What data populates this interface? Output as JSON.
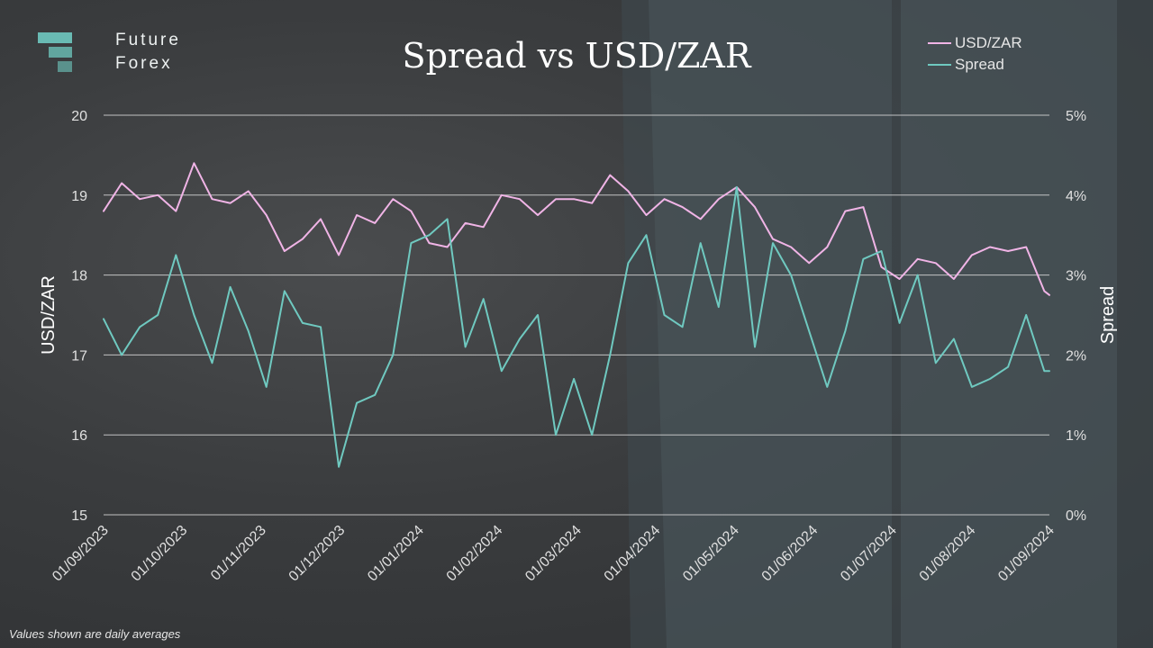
{
  "brand": {
    "line1": "Future",
    "line2": "Forex"
  },
  "footnote": "Values shown are daily averages",
  "colors": {
    "usdzar": "#f0b4e6",
    "spread": "#6fc9c0",
    "grid": "#d9d9d9"
  },
  "chart_data": {
    "type": "line",
    "title": "Spread vs USD/ZAR",
    "legend_position": "top-right",
    "grid": true,
    "y_left": {
      "label": "USD/ZAR",
      "range": [
        15,
        20
      ],
      "ticks": [
        "15",
        "16",
        "17",
        "18",
        "19",
        "20"
      ]
    },
    "y_right": {
      "label": "Spread",
      "range": [
        0,
        5
      ],
      "ticks": [
        "0%",
        "1%",
        "2%",
        "3%",
        "4%",
        "5%"
      ]
    },
    "x_tick_labels": [
      "01/09/2023",
      "01/10/2023",
      "01/11/2023",
      "01/12/2023",
      "01/01/2024",
      "01/02/2024",
      "01/03/2024",
      "01/04/2024",
      "01/05/2024",
      "01/06/2024",
      "01/07/2024",
      "01/08/2024",
      "01/09/2024"
    ],
    "x": [
      "2023-09-01",
      "2023-09-08",
      "2023-09-15",
      "2023-09-22",
      "2023-09-29",
      "2023-10-06",
      "2023-10-13",
      "2023-10-20",
      "2023-10-27",
      "2023-11-03",
      "2023-11-10",
      "2023-11-17",
      "2023-11-24",
      "2023-12-01",
      "2023-12-08",
      "2023-12-15",
      "2023-12-22",
      "2023-12-29",
      "2024-01-05",
      "2024-01-12",
      "2024-01-19",
      "2024-01-26",
      "2024-02-02",
      "2024-02-09",
      "2024-02-16",
      "2024-02-23",
      "2024-03-01",
      "2024-03-08",
      "2024-03-15",
      "2024-03-22",
      "2024-03-29",
      "2024-04-05",
      "2024-04-12",
      "2024-04-19",
      "2024-04-26",
      "2024-05-03",
      "2024-05-10",
      "2024-05-17",
      "2024-05-24",
      "2024-05-31",
      "2024-06-07",
      "2024-06-14",
      "2024-06-21",
      "2024-06-28",
      "2024-07-05",
      "2024-07-12",
      "2024-07-19",
      "2024-07-26",
      "2024-08-02",
      "2024-08-09",
      "2024-08-16",
      "2024-08-23",
      "2024-08-30",
      "2024-09-01"
    ],
    "series": [
      {
        "name": "USD/ZAR",
        "axis": "left",
        "values": [
          18.8,
          19.15,
          18.95,
          19.0,
          18.8,
          19.4,
          18.95,
          18.9,
          19.05,
          18.75,
          18.3,
          18.45,
          18.7,
          18.25,
          18.75,
          18.65,
          18.95,
          18.8,
          18.4,
          18.35,
          18.65,
          18.6,
          19.0,
          18.95,
          18.75,
          18.95,
          18.95,
          18.9,
          19.25,
          19.05,
          18.75,
          18.95,
          18.85,
          18.7,
          18.95,
          19.1,
          18.85,
          18.45,
          18.35,
          18.15,
          18.35,
          18.8,
          18.85,
          18.1,
          17.95,
          18.2,
          18.15,
          17.95,
          18.25,
          18.35,
          18.3,
          18.35,
          17.8,
          17.75
        ]
      },
      {
        "name": "Spread",
        "axis": "right",
        "values": [
          2.45,
          2.0,
          2.35,
          2.5,
          3.25,
          2.5,
          1.9,
          2.85,
          2.3,
          1.6,
          2.8,
          2.4,
          2.35,
          0.6,
          1.4,
          1.5,
          2.0,
          3.4,
          3.5,
          3.7,
          2.1,
          2.7,
          1.8,
          2.2,
          2.5,
          1.0,
          1.7,
          1.0,
          2.0,
          3.15,
          3.5,
          2.5,
          2.35,
          3.4,
          2.6,
          4.1,
          2.1,
          3.4,
          3.0,
          2.3,
          1.6,
          2.3,
          3.2,
          3.3,
          2.4,
          3.0,
          1.9,
          2.2,
          1.6,
          1.7,
          1.85,
          2.5,
          1.8,
          1.8
        ]
      }
    ]
  }
}
